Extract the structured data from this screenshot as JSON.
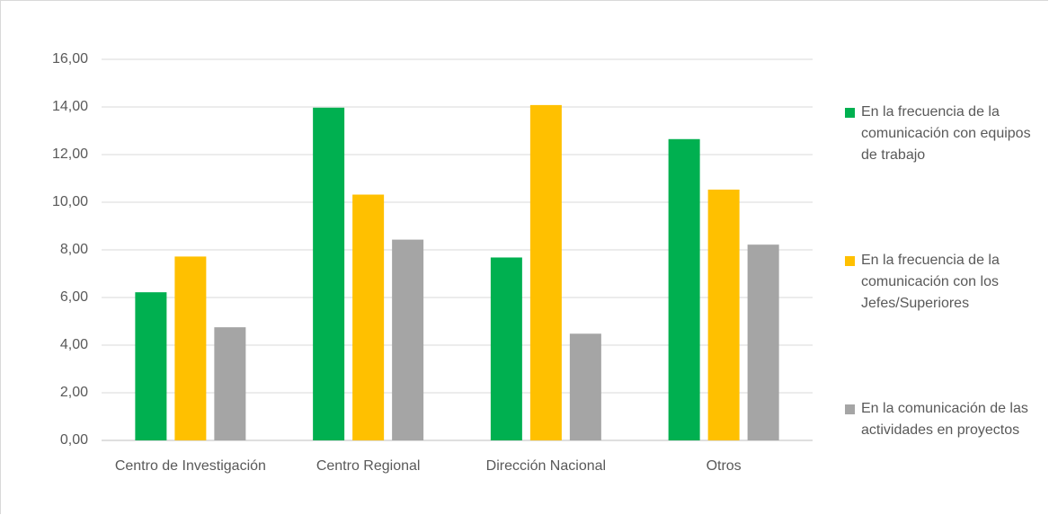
{
  "chart_data": {
    "type": "bar",
    "categories": [
      "Centro de Investigación",
      "Centro Regional",
      "Dirección Nacional",
      "Otros"
    ],
    "series": [
      {
        "name": "En la frecuencia de la comunicación con equipos de trabajo",
        "color": "#00b050",
        "values": [
          6.22,
          13.97,
          7.68,
          12.65
        ]
      },
      {
        "name": "En la frecuencia de la comunicación con los Jefes/Superiores",
        "color": "#ffc000",
        "values": [
          7.72,
          10.32,
          14.08,
          10.53
        ]
      },
      {
        "name": "En la comunicación de las actividades en proyectos",
        "color": "#a5a5a5",
        "values": [
          4.75,
          8.43,
          4.48,
          8.22
        ]
      }
    ],
    "ylim": [
      0,
      16
    ],
    "yticks": [
      {
        "value": 0,
        "label": "0,00"
      },
      {
        "value": 2,
        "label": "2,00"
      },
      {
        "value": 4,
        "label": "4,00"
      },
      {
        "value": 6,
        "label": "6,00"
      },
      {
        "value": 8,
        "label": "8,00"
      },
      {
        "value": 10,
        "label": "10,00"
      },
      {
        "value": 12,
        "label": "12,00"
      },
      {
        "value": 14,
        "label": "14,00"
      },
      {
        "value": 16,
        "label": "16,00"
      }
    ],
    "grid": true,
    "legend": "right"
  }
}
